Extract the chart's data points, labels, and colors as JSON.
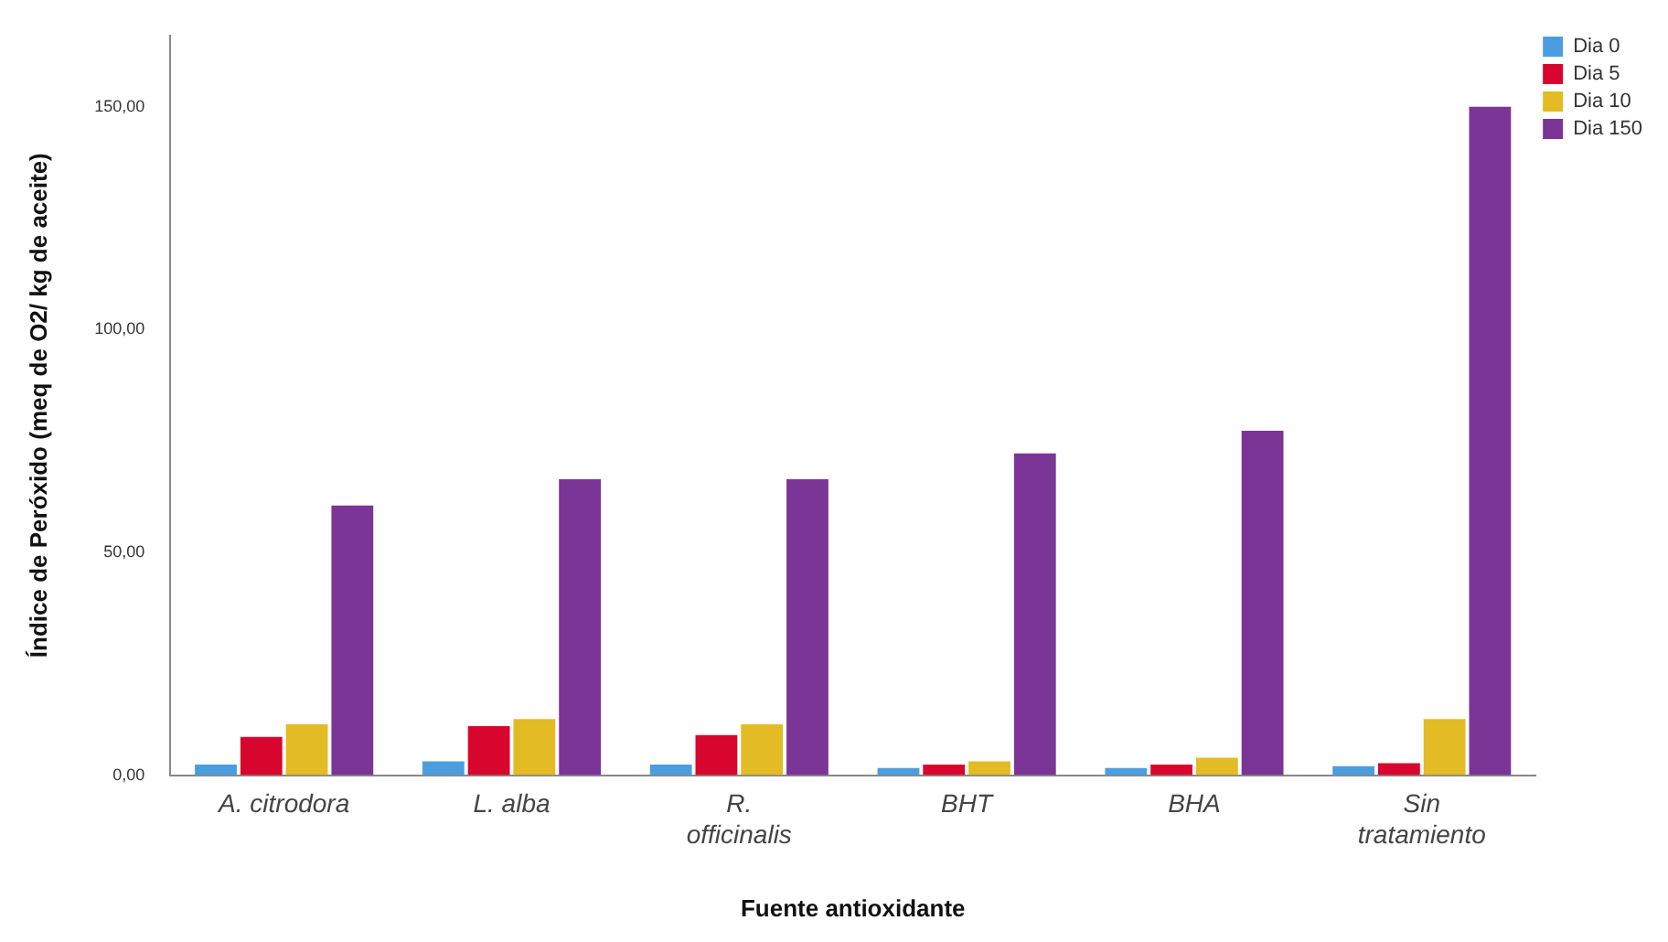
{
  "chart_data": {
    "type": "bar",
    "xlabel": "Fuente antioxidante",
    "ylabel": "Índice de Peróxido (meq de O2/ kg de aceite)",
    "categories": [
      "A. citrodora",
      "L. alba",
      "R. officinalis",
      "BHT",
      "BHA",
      "Sin tratamiento"
    ],
    "series": [
      {
        "name": "Dia 0",
        "color": "#4a9ee0",
        "values": [
          2.4,
          3.1,
          2.4,
          1.6,
          1.6,
          2
        ]
      },
      {
        "name": "Dia 5",
        "color": "#d8062e",
        "values": [
          8.6,
          11,
          9,
          2.4,
          2.4,
          2.7
        ]
      },
      {
        "name": "Dia 10",
        "color": "#e2bb25",
        "values": [
          11.4,
          12.6,
          11.4,
          3.1,
          3.9,
          12.6
        ]
      },
      {
        "name": "Dia 150",
        "color": "#7a3596",
        "values": [
          60.5,
          66.4,
          66.4,
          72.2,
          77.3,
          150
        ]
      }
    ],
    "ylim": [
      0,
      166
    ],
    "yticks": [
      {
        "value": 0,
        "label": "0,00"
      },
      {
        "value": 50,
        "label": "50,00"
      },
      {
        "value": 100,
        "label": "100,00"
      },
      {
        "value": 150,
        "label": "150,00"
      }
    ],
    "grid": false,
    "legend": "top right"
  }
}
